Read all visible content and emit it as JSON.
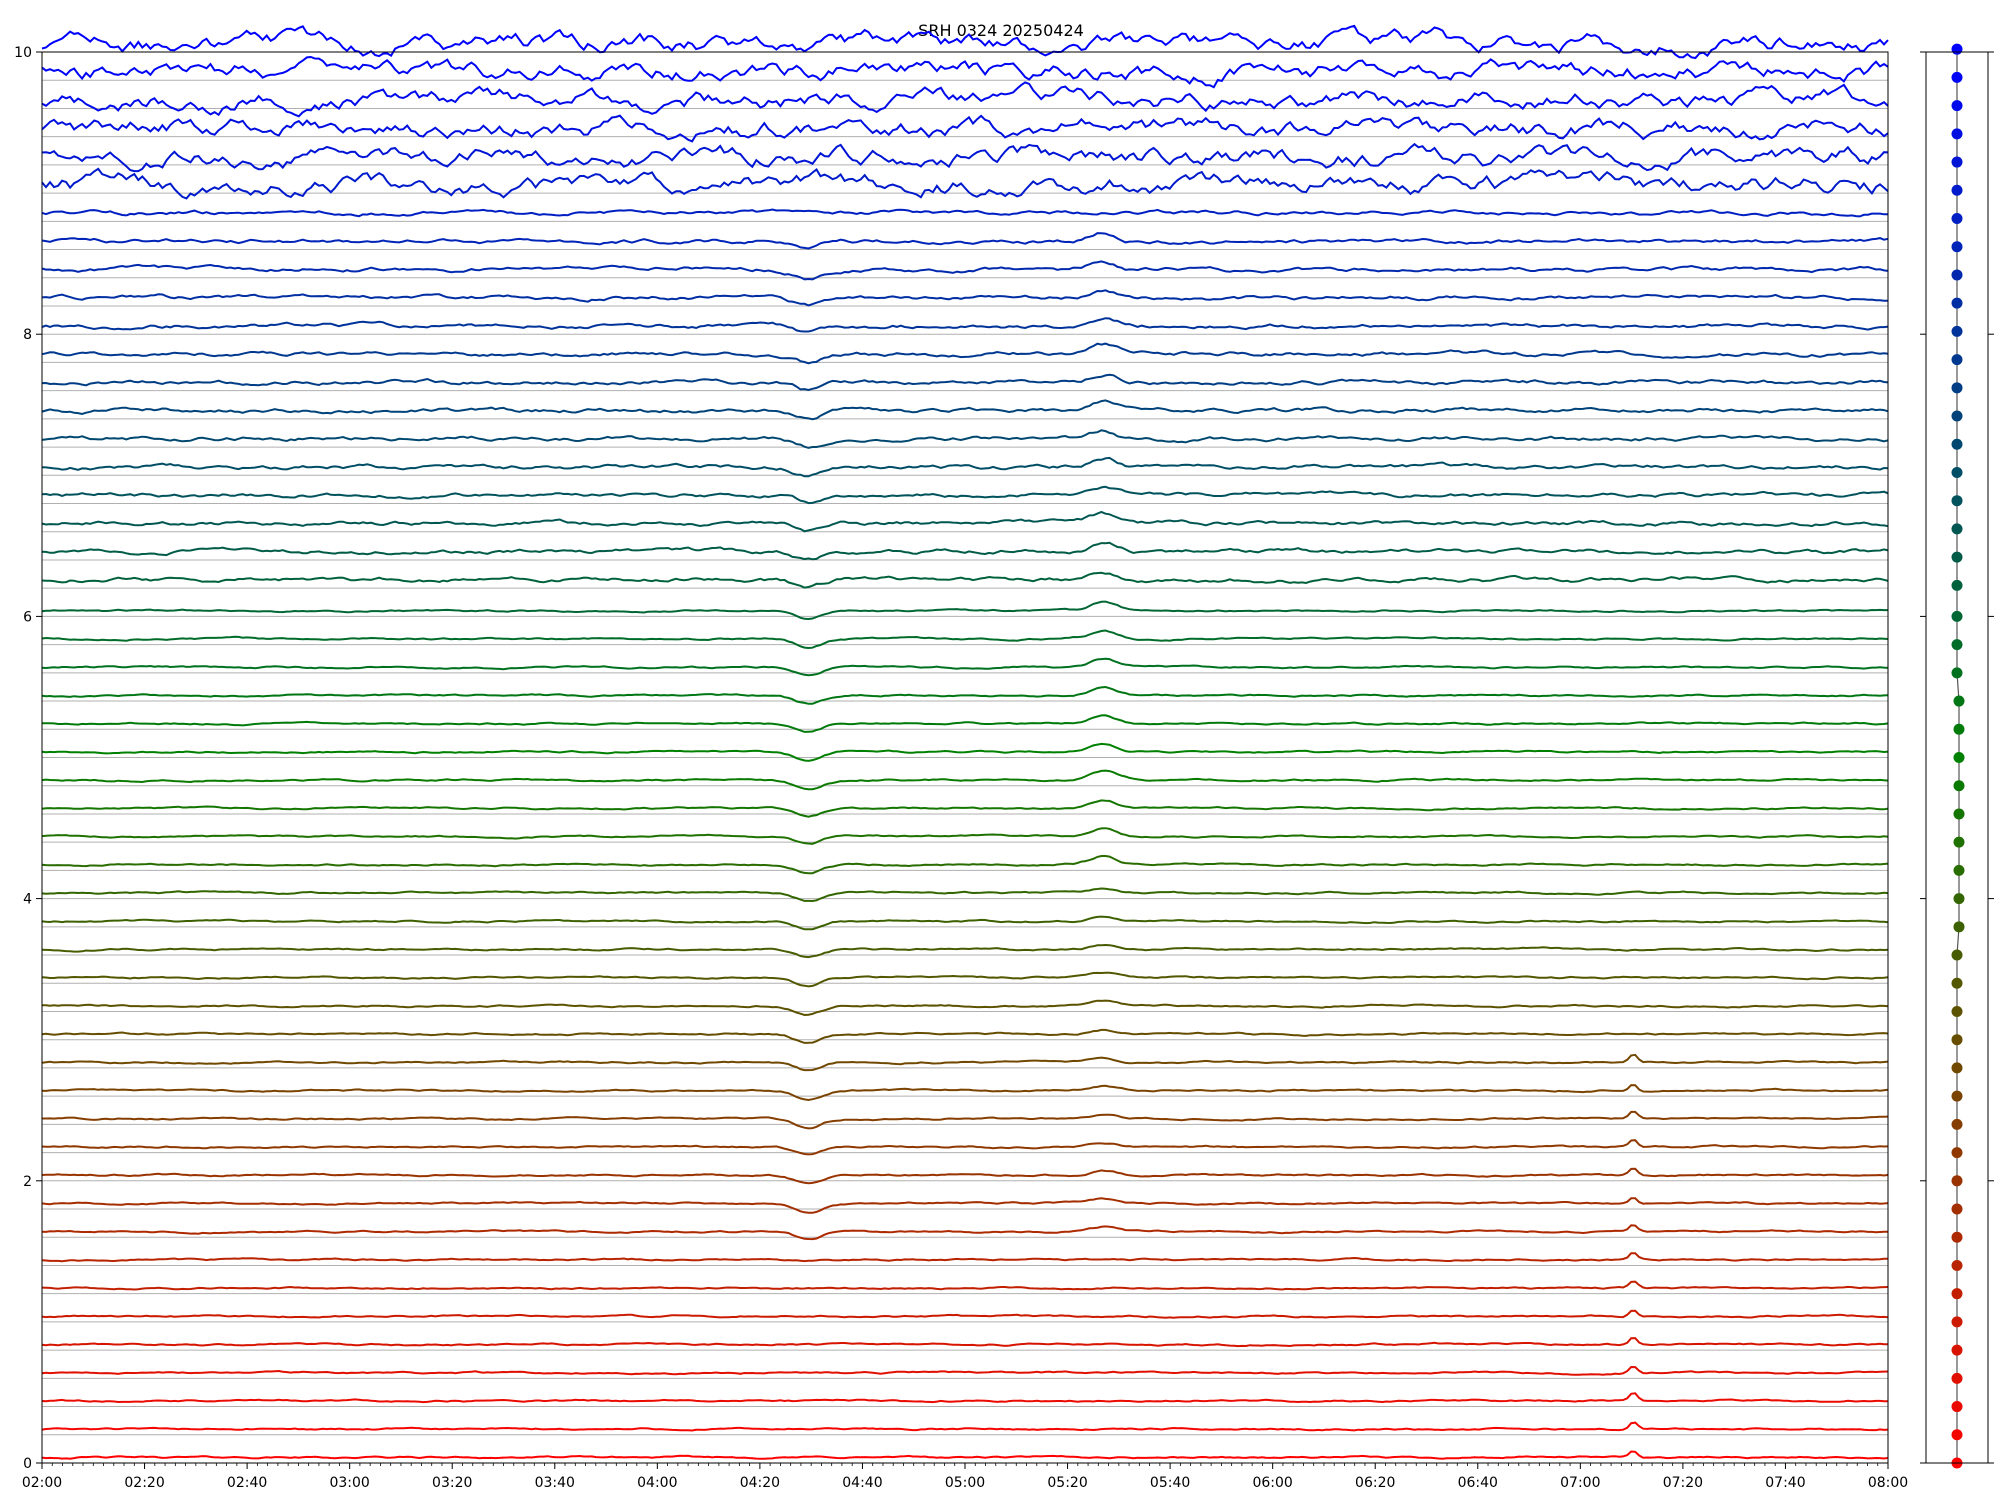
{
  "chart_data": [
    {
      "type": "line",
      "title": "SRH 0324 20250424",
      "xlabel": "",
      "ylabel": "",
      "xlim": [
        "02:00",
        "08:00"
      ],
      "ylim": [
        0,
        10
      ],
      "x_ticks": [
        "02:00",
        "02:20",
        "02:40",
        "03:00",
        "03:20",
        "03:40",
        "04:00",
        "04:20",
        "04:40",
        "05:00",
        "05:20",
        "05:40",
        "06:00",
        "06:20",
        "06:40",
        "07:00",
        "07:20",
        "07:40",
        "08:00"
      ],
      "y_ticks": [
        "0",
        "2",
        "4",
        "6",
        "8",
        "10"
      ],
      "grid": "horizontal baseline per trace",
      "legend": "none",
      "trace_count": 51,
      "trace_spacing": 0.2,
      "color_gradient": [
        "#0000ff",
        "#008000",
        "#ff0000"
      ],
      "notes_visible": "Stacked time-series traces, blue at top transitioning through green to red at bottom"
    },
    {
      "type": "scatter",
      "description": "Side strip of markers showing trace baseline positions",
      "ylim": [
        0,
        10
      ],
      "marker_count": 51,
      "color_gradient": [
        "#0000ff",
        "#008000",
        "#ff0000"
      ]
    }
  ],
  "labels": {
    "title": "SRH 0324 20250424"
  }
}
